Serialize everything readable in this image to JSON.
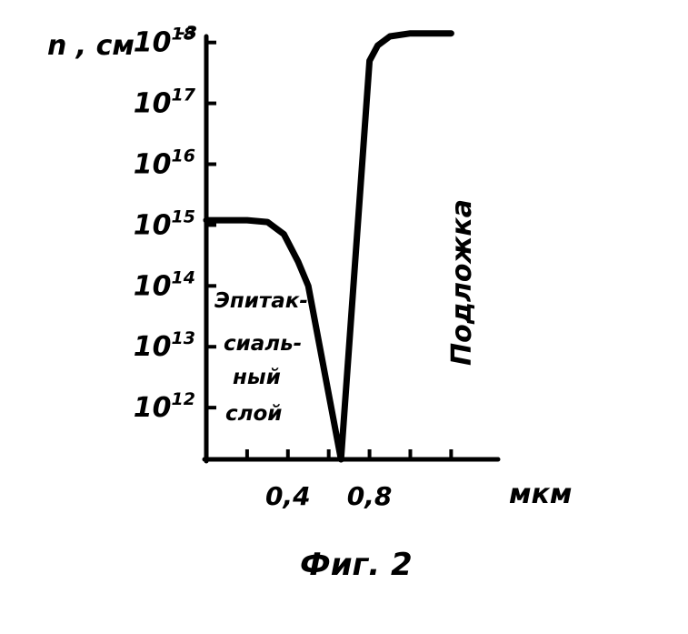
{
  "chart_data": {
    "type": "line",
    "title": "",
    "ylabel": "n , см",
    "ylabel_exponent": "-3",
    "xlabel": "мкм",
    "y_scale": "log",
    "ylim_exponent": [
      11.15,
      18.1
    ],
    "y_tick_labels": [
      {
        "base": "10",
        "exp": "12",
        "value_exp": 12
      },
      {
        "base": "10",
        "exp": "13",
        "value_exp": 13
      },
      {
        "base": "10",
        "exp": "14",
        "value_exp": 14
      },
      {
        "base": "10",
        "exp": "15",
        "value_exp": 15
      },
      {
        "base": "10",
        "exp": "16",
        "value_exp": 16
      },
      {
        "base": "10",
        "exp": "17",
        "value_exp": 17
      },
      {
        "base": "10",
        "exp": "18",
        "value_exp": 18
      }
    ],
    "xlim": [
      0,
      1.43
    ],
    "x_ticks": [
      0.2,
      0.4,
      0.6,
      0.8,
      1.0,
      1.2
    ],
    "x_tick_labels": [
      {
        "label": "0,4",
        "value": 0.4
      },
      {
        "label": "0,8",
        "value": 0.8
      }
    ],
    "grid": false,
    "series": [
      {
        "x": [
          0.0,
          0.2,
          0.3,
          0.38,
          0.45,
          0.5,
          0.66,
          0.8,
          0.84,
          0.9,
          1.0,
          1.2
        ],
        "log10_n": [
          15.08,
          15.08,
          15.05,
          14.85,
          14.4,
          14.0,
          11.15,
          17.7,
          17.95,
          18.1,
          18.15,
          18.15
        ]
      }
    ],
    "annotations": [
      {
        "lines": [
          "Эпитак-",
          "сиаль-",
          "ный",
          "слой"
        ]
      },
      {
        "lines": [
          "Подложка"
        ]
      }
    ]
  },
  "caption": "Фиг. 2"
}
